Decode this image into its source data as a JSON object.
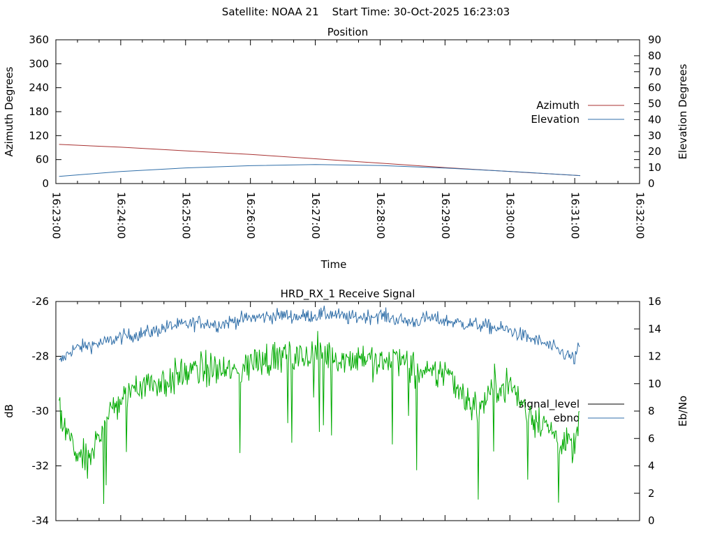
{
  "header": {
    "text": "Satellite: NOAA 21    Start Time: 30-Oct-2025 16:23:03"
  },
  "chart_data": [
    {
      "type": "line",
      "title": "Position",
      "xlabel": "Time",
      "ylabel": "Azimuth Degrees",
      "y2label": "Elevation Degrees",
      "xlim": [
        "16:23:00",
        "16:32:00"
      ],
      "xticks": [
        "16:23:00",
        "16:24:00",
        "16:25:00",
        "16:26:00",
        "16:27:00",
        "16:28:00",
        "16:29:00",
        "16:30:00",
        "16:31:00",
        "16:32:00"
      ],
      "ylim": [
        0,
        360
      ],
      "yticks": [
        "0",
        "60",
        "120",
        "180",
        "240",
        "300",
        "360"
      ],
      "y2lim": [
        0,
        90
      ],
      "y2ticks": [
        "0",
        "10",
        "20",
        "30",
        "40",
        "50",
        "60",
        "70",
        "80",
        "90"
      ],
      "legend_position": "right",
      "series": [
        {
          "name": "Azimuth",
          "axis": "y",
          "color": "#a83232",
          "x": [
            "16:23:03",
            "16:24:00",
            "16:25:00",
            "16:26:00",
            "16:27:00",
            "16:28:00",
            "16:29:00",
            "16:30:00",
            "16:31:05"
          ],
          "values": [
            98,
            91,
            82,
            73,
            62,
            51,
            40,
            30,
            20
          ]
        },
        {
          "name": "Elevation",
          "axis": "y2",
          "color": "#2f6ea8",
          "x": [
            "16:23:03",
            "16:24:00",
            "16:25:00",
            "16:26:00",
            "16:27:00",
            "16:28:00",
            "16:29:00",
            "16:30:00",
            "16:31:05"
          ],
          "values": [
            4.5,
            7.5,
            9.8,
            11.2,
            11.9,
            11.3,
            9.7,
            7.6,
            5.0
          ]
        }
      ]
    },
    {
      "type": "line",
      "title": "HRD_RX_1 Receive Signal",
      "ylabel": "dB",
      "y2label": "Eb/No",
      "xlim": [
        "16:23:00",
        "16:32:00"
      ],
      "ylim": [
        -34,
        -26
      ],
      "yticks": [
        "-26",
        "-28",
        "-30",
        "-32",
        "-34"
      ],
      "y2lim": [
        0,
        16
      ],
      "y2ticks": [
        "0",
        "2",
        "4",
        "6",
        "8",
        "10",
        "12",
        "14",
        "16"
      ],
      "legend_position": "right",
      "series": [
        {
          "name": "signal_level",
          "axis": "y",
          "color": "#000000",
          "x": [],
          "values": []
        },
        {
          "name": "ebno",
          "axis": "y2",
          "color": "#2f6ea8",
          "x": [
            "16:23:03",
            "16:23:15",
            "16:23:30",
            "16:23:45",
            "16:24:00",
            "16:24:15",
            "16:24:30",
            "16:24:45",
            "16:25:00",
            "16:25:15",
            "16:25:30",
            "16:25:45",
            "16:26:00",
            "16:26:15",
            "16:26:30",
            "16:26:45",
            "16:27:00",
            "16:27:15",
            "16:27:30",
            "16:27:45",
            "16:28:00",
            "16:28:15",
            "16:28:30",
            "16:28:45",
            "16:29:00",
            "16:29:15",
            "16:29:30",
            "16:29:45",
            "16:30:00",
            "16:30:15",
            "16:30:30",
            "16:30:45",
            "16:31:00",
            "16:31:05"
          ],
          "values": [
            11.5,
            12.5,
            12.8,
            13.0,
            13.4,
            13.6,
            13.8,
            14.2,
            14.3,
            14.5,
            14.3,
            14.6,
            14.8,
            14.9,
            15.0,
            14.9,
            15.0,
            15.1,
            14.8,
            14.9,
            15.0,
            14.7,
            14.5,
            14.8,
            14.6,
            14.4,
            14.3,
            14.1,
            13.9,
            13.4,
            13.0,
            12.4,
            11.8,
            13.0
          ]
        },
        {
          "name": "",
          "axis": "y2",
          "color": "#00aa00",
          "x": [
            "16:23:03",
            "16:23:15",
            "16:23:30",
            "16:23:45",
            "16:24:00",
            "16:24:15",
            "16:24:30",
            "16:24:45",
            "16:25:00",
            "16:25:15",
            "16:25:30",
            "16:25:45",
            "16:26:00",
            "16:26:15",
            "16:26:30",
            "16:26:45",
            "16:27:00",
            "16:27:15",
            "16:27:30",
            "16:27:45",
            "16:28:00",
            "16:28:15",
            "16:28:30",
            "16:28:45",
            "16:29:00",
            "16:29:15",
            "16:29:30",
            "16:29:45",
            "16:30:00",
            "16:30:15",
            "16:30:30",
            "16:30:45",
            "16:31:00",
            "16:31:05"
          ],
          "values": [
            7.5,
            5.5,
            4.0,
            7.5,
            8.8,
            10.0,
            10.0,
            10.2,
            10.8,
            11.0,
            11.0,
            10.8,
            11.5,
            11.8,
            12.0,
            11.8,
            12.2,
            12.0,
            11.8,
            12.0,
            11.4,
            12.0,
            11.0,
            10.5,
            11.0,
            9.5,
            8.0,
            9.8,
            10.0,
            8.0,
            7.2,
            6.0,
            5.2,
            8.0
          ]
        }
      ]
    }
  ]
}
